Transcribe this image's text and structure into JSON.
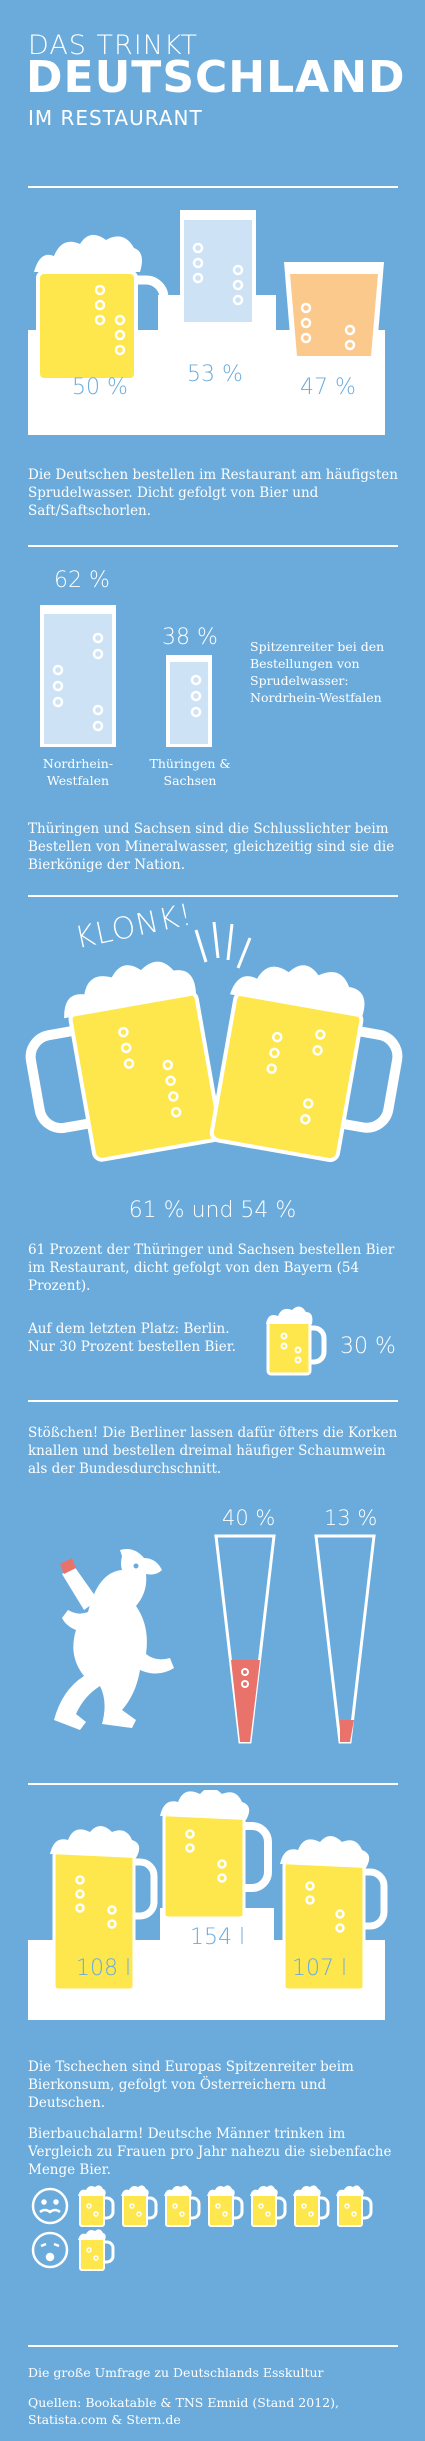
{
  "header": {
    "line1": "DAS TRINKT",
    "line2": "DEUTSCHLAND",
    "line3": "IM RESTAURANT"
  },
  "section1": {
    "chart_data": {
      "type": "bar",
      "categories": [
        "Bier",
        "Sprudelwasser",
        "Saft/Saftschorlen"
      ],
      "values": [
        50,
        53,
        47
      ]
    },
    "labels": [
      "50 %",
      "53 %",
      "47 %"
    ],
    "text": "Die Deutschen bestellen im Restaurant am häufigsten Sprudelwasser. Dicht gefolgt von Bier und Saft/Saftschorlen."
  },
  "section2": {
    "chart_data": {
      "type": "bar",
      "categories": [
        "Nordrhein-Westfalen",
        "Thüringen & Sachsen"
      ],
      "values": [
        62,
        38
      ]
    },
    "pct_labels": [
      "62 %",
      "38 %"
    ],
    "glass_labels": [
      "Nordrhein-Westfalen",
      "Thüringen & Sachsen"
    ],
    "side_note": "Spitzenreiter bei den Bestellungen von Sprudelwasser: Nordrhein-Westfalen",
    "text": "Thüringen und Sachsen sind die Schlusslichter beim Bestellen von Mineralwasser, gleichzeitig sind sie die Bierkönige der Nation."
  },
  "section3": {
    "klonk": "KLONK!",
    "big_label": "61 % und 54 %",
    "text": "61 Prozent der Thüringer und Sachsen bestellen  Bier im Restaurant, dicht gefolgt von den Bayern (54 Prozent).",
    "berlin_text": "Auf dem letzten Platz: Berlin. Nur 30 Prozent bestellen Bier.",
    "berlin_pct": "30 %",
    "chart_data": {
      "type": "bar",
      "categories": [
        "Thüringen und Sachsen",
        "Bayern",
        "Berlin"
      ],
      "values": [
        61,
        54,
        30
      ]
    }
  },
  "section4": {
    "text": "Stößchen! Die Berliner lassen dafür öfters die Korken knallen und bestellen dreimal häufiger Schaumwein als der Bundesdurchschnitt.",
    "pct_labels": [
      "40 %",
      "13 %"
    ],
    "chart_data": {
      "type": "bar",
      "values": [
        40,
        13
      ]
    }
  },
  "section5": {
    "chart_data": {
      "type": "bar",
      "values": [
        108,
        154,
        107
      ],
      "unit": "l"
    },
    "labels": [
      "108 l",
      "154 l",
      "107 l"
    ],
    "text1": "Die Tschechen sind Europas Spitzenreiter beim Bierkonsum, gefolgt von Österreichern und Deutschen.",
    "text2": "Bierbauchalarm! Deutsche Männer trinken im Vergleich zu Frauen pro Jahr nahezu die siebenfache Menge Bier.",
    "men_mugs": 7,
    "women_mugs": 1
  },
  "footer": {
    "title": "Die große Umfrage zu Deutschlands Esskultur",
    "source1": "Quellen: Bookatable & TNS Emnid (Stand 2012),",
    "source2": "Statista.com & Stern.de"
  },
  "colors": {
    "background": "#6aabdc",
    "beer": "#fde74c",
    "water": "#cde3f5",
    "juice": "#fbc98c",
    "sekt": "#e9726b"
  }
}
